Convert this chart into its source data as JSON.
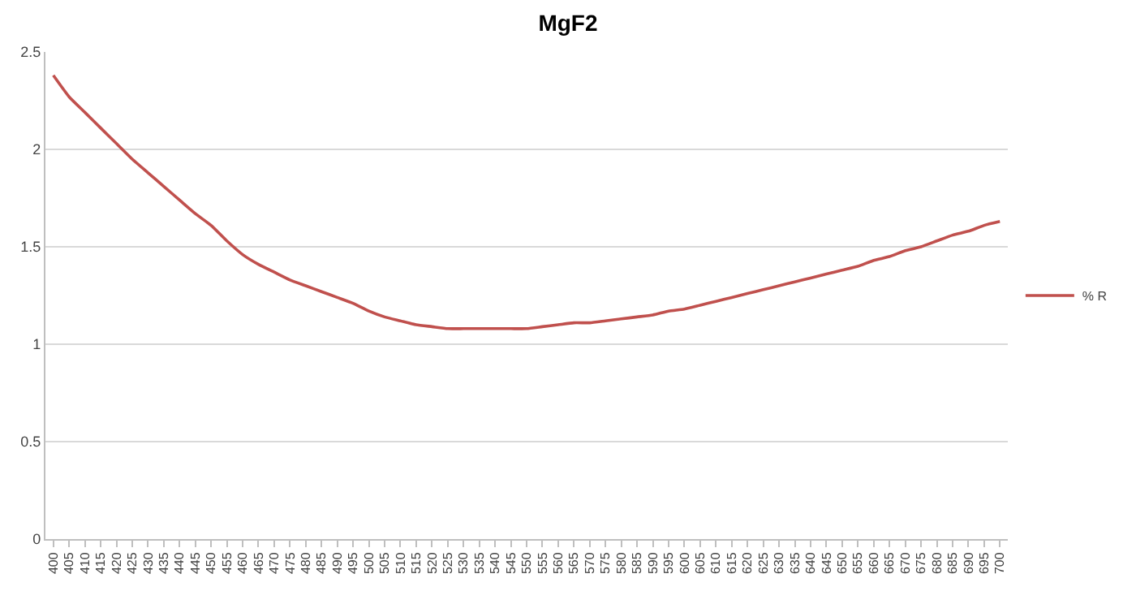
{
  "chart_data": {
    "type": "line",
    "title": "MgF2",
    "categories": [
      "400",
      "405",
      "410",
      "415",
      "420",
      "425",
      "430",
      "435",
      "440",
      "445",
      "450",
      "455",
      "460",
      "465",
      "470",
      "475",
      "480",
      "485",
      "490",
      "495",
      "500",
      "505",
      "510",
      "515",
      "520",
      "525",
      "530",
      "535",
      "540",
      "545",
      "550",
      "555",
      "560",
      "565",
      "570",
      "575",
      "580",
      "585",
      "590",
      "595",
      "600",
      "605",
      "610",
      "615",
      "620",
      "625",
      "630",
      "635",
      "640",
      "645",
      "650",
      "655",
      "660",
      "665",
      "670",
      "675",
      "680",
      "685",
      "690",
      "695",
      "700"
    ],
    "series": [
      {
        "name": "% R",
        "color": "#c0504d",
        "values": [
          2.38,
          2.27,
          2.19,
          2.11,
          2.03,
          1.95,
          1.88,
          1.81,
          1.74,
          1.67,
          1.61,
          1.53,
          1.46,
          1.41,
          1.37,
          1.33,
          1.3,
          1.27,
          1.24,
          1.21,
          1.17,
          1.14,
          1.12,
          1.1,
          1.09,
          1.08,
          1.08,
          1.08,
          1.08,
          1.08,
          1.08,
          1.09,
          1.1,
          1.11,
          1.11,
          1.12,
          1.13,
          1.14,
          1.15,
          1.17,
          1.18,
          1.2,
          1.22,
          1.24,
          1.26,
          1.28,
          1.3,
          1.32,
          1.34,
          1.36,
          1.38,
          1.4,
          1.43,
          1.45,
          1.48,
          1.5,
          1.53,
          1.56,
          1.58,
          1.61,
          1.63
        ]
      }
    ],
    "ylim": [
      0,
      2.5
    ],
    "yticks": [
      0,
      0.5,
      1,
      1.5,
      2,
      2.5
    ],
    "grid": "y",
    "legend": "right",
    "marker": "none",
    "line_style": "solid"
  }
}
